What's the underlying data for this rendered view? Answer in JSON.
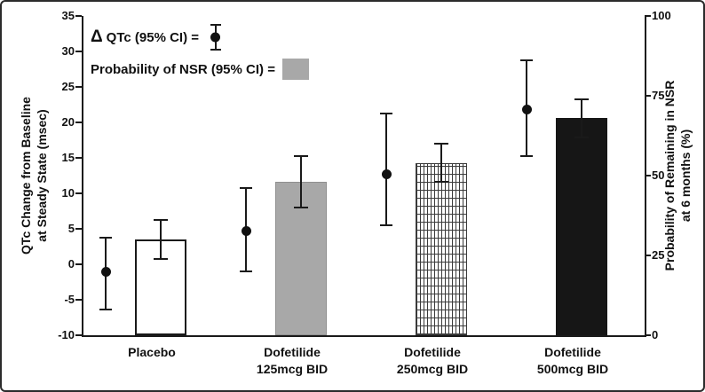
{
  "chart_data": {
    "type": "bar",
    "description": "Combination chart: points with 95% CI error bars (left axis) and bars with 95% CI error bars (right axis)",
    "categories": [
      {
        "line1": "Placebo",
        "line2": ""
      },
      {
        "line1": "Dofetilide",
        "line2": "125mcg BID"
      },
      {
        "line1": "Dofetilide",
        "line2": "250mcg BID"
      },
      {
        "line1": "Dofetilide",
        "line2": "500mcg BID"
      }
    ],
    "left_axis": {
      "label_line1": "QTc Change from Baseline",
      "label_line2": "at Steady State (msec)",
      "min": -10,
      "max": 35,
      "step": 5,
      "ticks": [
        35,
        30,
        25,
        20,
        15,
        10,
        5,
        0,
        -5,
        -10
      ]
    },
    "right_axis": {
      "label_line1": "Probability of Remaining in NSR",
      "label_line2": "at  6 months (%)",
      "min": 0,
      "max": 100,
      "step": 25,
      "ticks": [
        100,
        75,
        50,
        25,
        0
      ]
    },
    "series": [
      {
        "name": "Delta QTc (95% CI)",
        "type": "point",
        "axis": "left",
        "units": "msec",
        "values": [
          -1.0,
          4.7,
          12.7,
          21.8
        ],
        "ci_low": [
          -6.4,
          -1.0,
          5.5,
          15.2
        ],
        "ci_high": [
          3.7,
          10.8,
          21.2,
          28.8
        ],
        "color": "#111111"
      },
      {
        "name": "Probability of NSR (95% CI)",
        "type": "bar",
        "axis": "right",
        "units": "%",
        "values": [
          30,
          48,
          54,
          68
        ],
        "ci_low": [
          24,
          40,
          48,
          62
        ],
        "ci_high": [
          36,
          56,
          60,
          74
        ],
        "fills": [
          "white",
          "gray",
          "hatch",
          "black"
        ]
      }
    ],
    "legend": {
      "qtc_prefix": "Δ",
      "qtc_label": "QTc (95% CI) = ",
      "nsr_label": "Probability of NSR (95% CI) ="
    },
    "grid": false,
    "legend_position": "top-left inside plot"
  },
  "colors": {
    "bar_gray": "#a8a8a8",
    "bar_black": "#161616",
    "axis_black": "#1a1a1a",
    "background": "#ffffff"
  }
}
